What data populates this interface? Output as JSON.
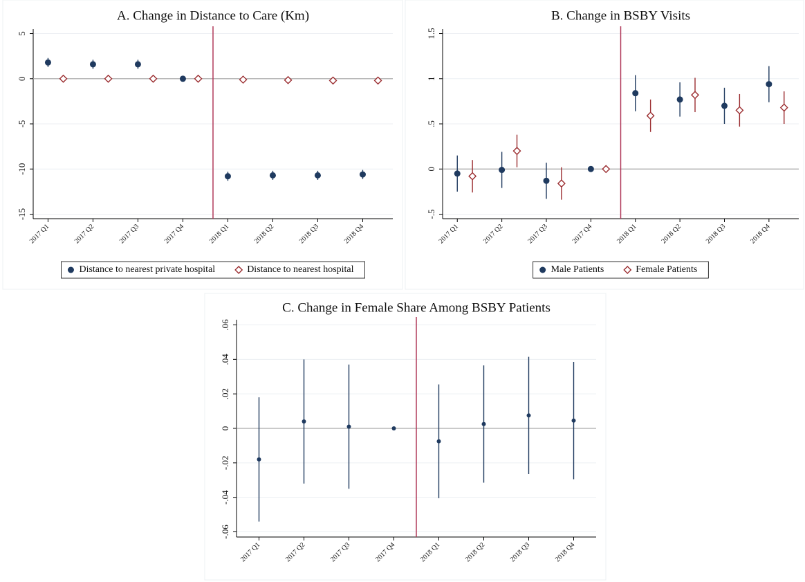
{
  "chart_data": [
    {
      "type": "errorbar",
      "title": "A. Change in Distance to Care (Km)",
      "categories": [
        "2017 Q1",
        "2017 Q2",
        "2017 Q3",
        "2017 Q4",
        "2018 Q1",
        "2018 Q2",
        "2018 Q3",
        "2018 Q4"
      ],
      "series": [
        {
          "name": "Distance to nearest private hospital",
          "color": "#1f3a5f",
          "marker": "circle",
          "values": [
            1.8,
            1.6,
            1.6,
            0,
            -10.8,
            -10.7,
            -10.7,
            -10.6
          ],
          "errors": [
            0.5,
            0.5,
            0.5,
            0,
            0.5,
            0.5,
            0.5,
            0.5
          ]
        },
        {
          "name": "Distance to nearest hospital",
          "color": "#9b2d30",
          "marker": "diamond",
          "values": [
            0,
            0,
            0,
            0,
            -0.1,
            -0.15,
            -0.2,
            -0.2
          ],
          "errors": [
            0.1,
            0.1,
            0.1,
            0,
            0.1,
            0.1,
            0.1,
            0.1
          ]
        }
      ],
      "ylim": [
        -15.5,
        5.5
      ],
      "yticks": [
        5,
        0,
        -5,
        -10,
        -15
      ],
      "hline": 0,
      "vline": 3.5,
      "legend": "bottom"
    },
    {
      "type": "errorbar",
      "title": "B. Change in BSBY Visits",
      "categories": [
        "2017 Q1",
        "2017 Q2",
        "2017 Q3",
        "2017 Q4",
        "2018 Q1",
        "2018 Q2",
        "2018 Q3",
        "2018 Q4"
      ],
      "series": [
        {
          "name": "Male Patients",
          "color": "#1f3a5f",
          "marker": "circle",
          "values": [
            -0.05,
            -0.01,
            -0.13,
            0,
            0.84,
            0.77,
            0.7,
            0.94
          ],
          "errors": [
            0.2,
            0.2,
            0.2,
            0,
            0.2,
            0.19,
            0.2,
            0.2
          ]
        },
        {
          "name": "Female Patients",
          "color": "#9b2d30",
          "marker": "diamond",
          "values": [
            -0.08,
            0.2,
            -0.16,
            0,
            0.59,
            0.82,
            0.65,
            0.68
          ],
          "errors": [
            0.18,
            0.18,
            0.18,
            0,
            0.18,
            0.19,
            0.18,
            0.18
          ]
        }
      ],
      "ylim": [
        -0.55,
        1.55
      ],
      "yticks": [
        1.5,
        1,
        {
          "value": 0.5,
          "label": ".5"
        },
        0,
        {
          "value": -0.5,
          "label": "-.5"
        }
      ],
      "hline": 0,
      "vline": 3.5,
      "legend": "bottom"
    },
    {
      "type": "errorbar",
      "title": "C. Change in Female Share Among BSBY Patients",
      "categories": [
        "2017 Q1",
        "2017 Q2",
        "2017 Q3",
        "2017 Q4",
        "2018 Q1",
        "2018 Q2",
        "2018 Q3",
        "2018 Q4"
      ],
      "series": [
        {
          "color": "#1f3a5f",
          "marker": "dot",
          "values": [
            -0.018,
            0.004,
            0.001,
            0,
            -0.0075,
            0.0025,
            0.0075,
            0.0045
          ],
          "errors": [
            0.036,
            0.036,
            0.036,
            0,
            0.033,
            0.034,
            0.034,
            0.034
          ]
        }
      ],
      "ylim": [
        -0.063,
        0.063
      ],
      "yticks": [
        {
          "value": 0.06,
          "label": ".06"
        },
        {
          "value": 0.04,
          "label": ".04"
        },
        {
          "value": 0.02,
          "label": ".02"
        },
        0,
        {
          "value": -0.02,
          "label": "-.02"
        },
        {
          "value": -0.04,
          "label": "-.04"
        },
        {
          "value": -0.06,
          "label": "-.06"
        }
      ],
      "hline": 0,
      "vline": 3.5
    }
  ]
}
